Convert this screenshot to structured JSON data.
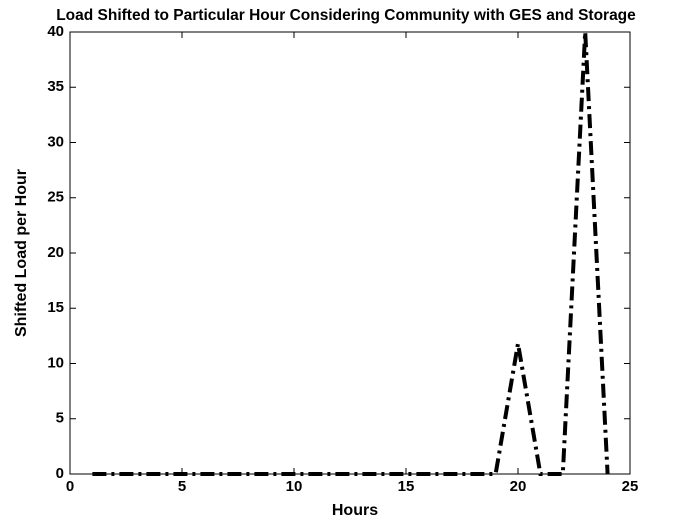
{
  "chart_data": {
    "type": "line",
    "title": "Load Shifted to Particular Hour Considering Community with GES and Storage",
    "x_label": "Hours",
    "y_label": "Shifted Load per Hour",
    "x": [
      1,
      2,
      3,
      4,
      5,
      6,
      7,
      8,
      9,
      10,
      11,
      12,
      13,
      14,
      15,
      16,
      17,
      18,
      19,
      20,
      21,
      22,
      23,
      24
    ],
    "values": [
      0,
      0,
      0,
      0,
      0,
      0,
      0,
      0,
      0,
      0,
      0,
      0,
      0,
      0,
      0,
      0,
      0,
      0,
      0,
      11.8,
      0,
      0,
      40,
      0
    ],
    "color": "#000000",
    "line_style": "dash-dot",
    "xlim": [
      0,
      25
    ],
    "xticks": [
      0,
      5,
      10,
      15,
      20,
      25
    ],
    "ylim": [
      0,
      40
    ],
    "yticks": [
      0,
      5,
      10,
      15,
      20,
      25,
      30,
      35,
      40
    ],
    "grid": false
  }
}
